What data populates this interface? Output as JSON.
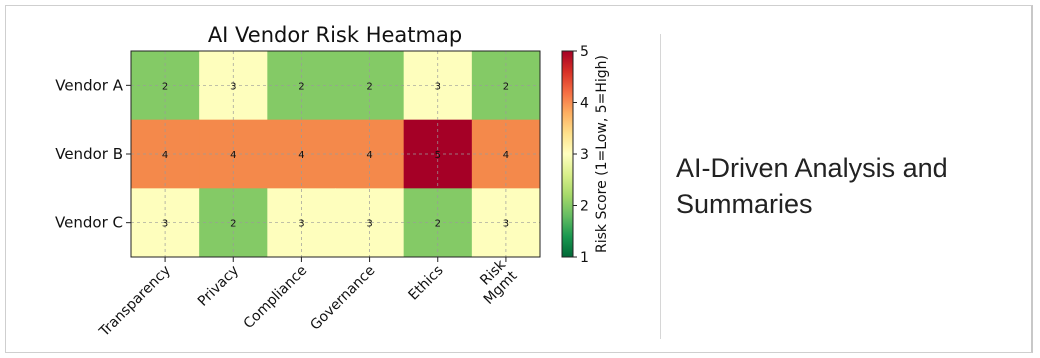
{
  "side": {
    "text": "AI-Driven Analysis and Summaries"
  },
  "chart_data": {
    "type": "heatmap",
    "title": "AI Vendor Risk Heatmap",
    "rows": [
      "Vendor A",
      "Vendor B",
      "Vendor C"
    ],
    "columns": [
      "Transparency",
      "Privacy",
      "Compliance",
      "Governance",
      "Ethics",
      "Risk\nMgmt"
    ],
    "values": [
      [
        2,
        3,
        2,
        2,
        3,
        2
      ],
      [
        4,
        4,
        4,
        4,
        5,
        4
      ],
      [
        3,
        2,
        3,
        3,
        2,
        3
      ]
    ],
    "colorbar": {
      "label": "Risk Score (1=Low, 5=High)",
      "min": 1,
      "max": 5,
      "ticks": [
        1,
        2,
        3,
        4,
        5
      ],
      "colormap": "RdYlGn_r"
    },
    "grid": true,
    "colors": {
      "score_2": "#84ca66",
      "score_3": "#fefebd",
      "score_4": "#f4894b",
      "score_5": "#a50026"
    }
  }
}
